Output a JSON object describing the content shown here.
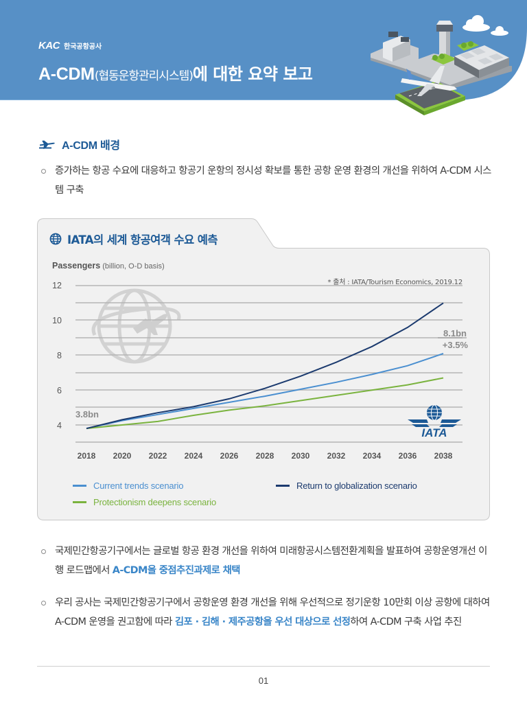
{
  "header": {
    "brand_logo": "KAC",
    "brand_name": "한국공항공사",
    "title_main": "A-CDM",
    "title_sub": "(협동운항관리시스템)",
    "title_tail": "에 대한 요약 보고",
    "band_color": "#5790c6"
  },
  "section": {
    "icon": "airplane-icon",
    "heading": "A-CDM 배경"
  },
  "bullets": [
    {
      "text_before": "증가하는 항공 수요에 대응하고 항공기 운항의 정시성 확보를 통한 공항 운영 환경의 개선을 위하여 A-CDM 시스템 구축",
      "highlight": "",
      "text_after": ""
    },
    {
      "text_before": "국제민간항공기구에서는 글로벌 항공 환경 개선을 위하여 미래항공시스템전환계획을 발표하여 공항운영개선 이행 로드맵에서 ",
      "highlight": "A-CDM을 중점추진과제로 채택",
      "text_after": ""
    },
    {
      "text_before": "우리 공사는 국제민간항공기구에서 공항운영 환경 개선을 위해 우선적으로 정기운항 10만회 이상 공항에 대하여 A-CDM 운영을 권고함에 따라 ",
      "highlight": "김포 · 김해 · 제주공항을 우선 대상으로 선정",
      "text_after": "하여 A-CDM 구축 사업 추진"
    }
  ],
  "card": {
    "icon": "globe-icon",
    "title": "IATA의 세계 항공여객 수요 예측",
    "y_title": "Passengers",
    "y_unit": " (billion, O-D basis)",
    "source": "* 출처 : IATA/Tourism Economics, 2019.12",
    "start_annotation": "3.8bn",
    "end_annotation_value": "8.1bn",
    "end_annotation_growth": "+3.5%",
    "logo_text": "IATA"
  },
  "chart_data": {
    "type": "line",
    "title": "IATA의 세계 항공여객 수요 예측",
    "xlabel": "",
    "ylabel": "Passengers (billion, O-D basis)",
    "x": [
      2018,
      2020,
      2022,
      2024,
      2026,
      2028,
      2030,
      2032,
      2034,
      2036,
      2038
    ],
    "x_tick_labels": [
      "2018",
      "2020",
      "2022",
      "2024",
      "2026",
      "2028",
      "2030",
      "2032",
      "2034",
      "2036",
      "2038"
    ],
    "y_tick_labels": [
      "4",
      "6",
      "8",
      "10",
      "12"
    ],
    "ylim": [
      3,
      12
    ],
    "grid": true,
    "gridline_step": 1,
    "legend_position": "bottom",
    "series": [
      {
        "name": "Current trends scenario",
        "color": "#4a8fd0",
        "values": [
          3.8,
          4.25,
          4.6,
          4.95,
          5.3,
          5.65,
          6.05,
          6.45,
          6.9,
          7.4,
          8.1
        ]
      },
      {
        "name": "Return to globalization scenario",
        "color": "#1b3a6e",
        "values": [
          3.8,
          4.3,
          4.7,
          5.05,
          5.5,
          6.1,
          6.8,
          7.6,
          8.5,
          9.6,
          11.0
        ]
      },
      {
        "name": "Protectionism deepens scenario",
        "color": "#7ab33e",
        "values": [
          3.8,
          4.0,
          4.2,
          4.55,
          4.85,
          5.1,
          5.4,
          5.7,
          6.0,
          6.3,
          6.7
        ]
      }
    ],
    "annotations": [
      "3.8bn",
      "8.1bn",
      "+3.5%"
    ],
    "source": "* 출처 : IATA/Tourism Economics, 2019.12"
  },
  "legend": [
    {
      "label": "Current trends scenario",
      "color": "#4a8fd0"
    },
    {
      "label": "Return to globalization scenario",
      "color": "#1b3a6e"
    },
    {
      "label": "Protectionism deepens scenario",
      "color": "#7ab33e"
    }
  ],
  "footer": {
    "page": "01"
  }
}
